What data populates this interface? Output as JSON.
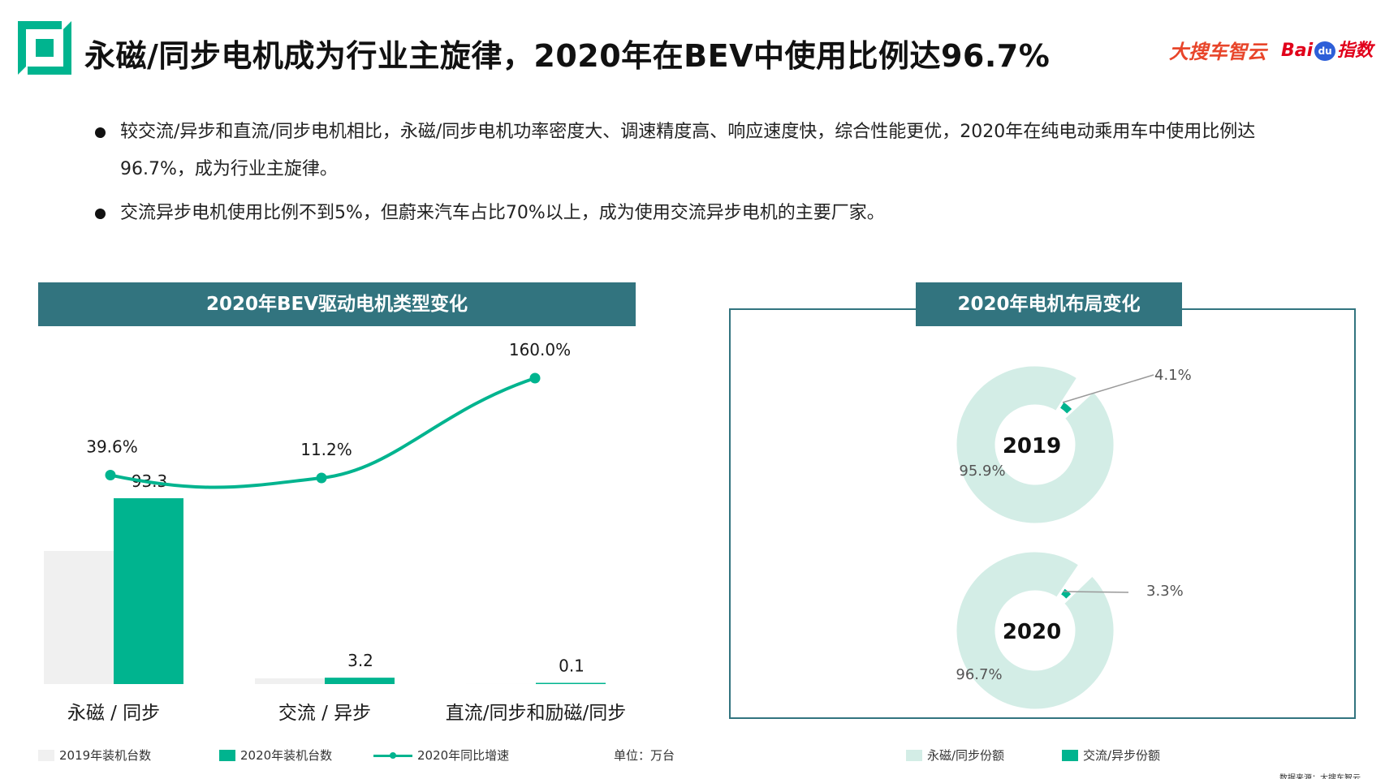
{
  "header": {
    "title": "永磁/同步电机成为行业主旋律，2020年在BEV中使用比例达96.7%",
    "brand_a": "大搜车智云",
    "brand_b_left": "Bai",
    "brand_b_paw": "du",
    "brand_b_right": "指数"
  },
  "bullets": [
    "较交流/异步和直流/同步电机相比，永磁/同步电机功率密度大、调速精度高、响应速度快，综合性能更优，2020年在纯电动乘用车中使用比例达96.7%，成为行业主旋律。",
    "交流异步电机使用比例不到5%，但蔚来汽车占比70%以上，成为使用交流异步电机的主要厂家。"
  ],
  "left_panel": {
    "title": "2020年BEV驱动电机类型变化"
  },
  "right_panel": {
    "title": "2020年电机布局变化"
  },
  "legend_left": {
    "item_2019": "2019年装机台数",
    "item_2020": "2020年装机台数",
    "item_growth": "2020年同比增速",
    "unit": "单位：万台"
  },
  "legend_right": {
    "item_pm": "永磁/同步份额",
    "item_ac": "交流/异步份额"
  },
  "source": "数据来源：大搜车智云",
  "colors": {
    "teal": "#00b48f",
    "header_bg": "#32747f",
    "bar_2019": "#f0f0f0",
    "donut_light": "#d3ede6"
  },
  "chart_data": [
    {
      "type": "bar",
      "title": "2020年BEV驱动电机类型变化",
      "categories": [
        "永磁 / 同步",
        "交流 / 异步",
        "直流/同步和励磁/同步"
      ],
      "series": [
        {
          "name": "2019年装机台数",
          "values": [
            66.8,
            2.9,
            0.04
          ]
        },
        {
          "name": "2020年装机台数",
          "values": [
            93.3,
            3.2,
            0.1
          ],
          "labels": [
            "93.3",
            "3.2",
            "0.1"
          ]
        },
        {
          "name": "2020年同比增速",
          "kind": "line",
          "values": [
            39.6,
            11.2,
            160.0
          ],
          "labels": [
            "39.6%",
            "11.2%",
            "160.0%"
          ]
        }
      ],
      "unit": "单位：万台"
    },
    {
      "type": "pie",
      "title": "2019",
      "slices": [
        {
          "name": "永磁/同步份额",
          "value": 95.9,
          "label": "95.9%"
        },
        {
          "name": "交流/异步份额",
          "value": 4.1,
          "label": "4.1%"
        }
      ]
    },
    {
      "type": "pie",
      "title": "2020",
      "slices": [
        {
          "name": "永磁/同步份额",
          "value": 96.7,
          "label": "96.7%"
        },
        {
          "name": "交流/异步份额",
          "value": 3.3,
          "label": "3.3%"
        }
      ]
    }
  ]
}
